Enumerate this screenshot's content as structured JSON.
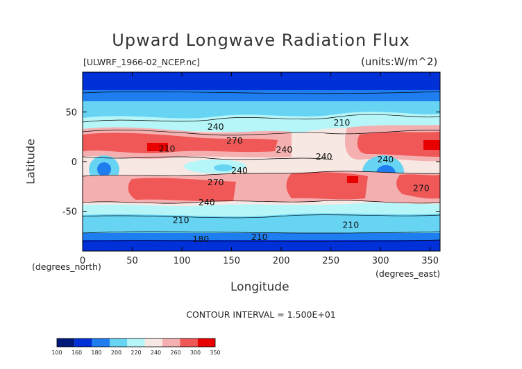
{
  "chart_data": {
    "type": "heatmap",
    "title": "Upward Longwave Radiation Flux",
    "source_label": "[ULWRF_1966-02_NCEP.nc]",
    "units_label": "(units:W/m^2)",
    "xlabel": "Longitude",
    "ylabel": "Latitude",
    "x_coord_label": "(degrees_east)",
    "y_coord_label": "(degrees_north)",
    "contour_interval_label": "CONTOUR INTERVAL = 1.500E+01",
    "xlim": [
      0,
      360
    ],
    "ylim": [
      -90,
      90
    ],
    "x_ticks": [
      0,
      50,
      100,
      150,
      200,
      250,
      300,
      350
    ],
    "y_ticks": [
      -50,
      0,
      50
    ],
    "contour_labels": [
      {
        "text": "240",
        "lon": 134,
        "lat": 35
      },
      {
        "text": "210",
        "lon": 261,
        "lat": 39
      },
      {
        "text": "270",
        "lon": 153,
        "lat": 21
      },
      {
        "text": "210",
        "lon": 85,
        "lat": 13
      },
      {
        "text": "240",
        "lon": 203,
        "lat": 12
      },
      {
        "text": "240",
        "lon": 243,
        "lat": 5
      },
      {
        "text": "240",
        "lon": 305,
        "lat": 2
      },
      {
        "text": "240",
        "lon": 158,
        "lat": -9
      },
      {
        "text": "270",
        "lon": 134,
        "lat": -21
      },
      {
        "text": "270",
        "lon": 341,
        "lat": -27
      },
      {
        "text": "240",
        "lon": 125,
        "lat": -41
      },
      {
        "text": "210",
        "lon": 99,
        "lat": -59
      },
      {
        "text": "210",
        "lon": 270,
        "lat": -64
      },
      {
        "text": "210",
        "lon": 178,
        "lat": -76
      },
      {
        "text": "180",
        "lon": 119,
        "lat": -78
      }
    ],
    "colorbar": {
      "labels": [
        "100",
        "160",
        "180",
        "200",
        "220",
        "240",
        "260",
        "300",
        "350"
      ],
      "colors": [
        "#001a7a",
        "#0030d8",
        "#1e7ef0",
        "#68d4f4",
        "#b6f6f8",
        "#f8e8e4",
        "#f4b0b0",
        "#f05858",
        "#e80000"
      ]
    },
    "grid": false,
    "legend": "colorbar bottom-left"
  }
}
